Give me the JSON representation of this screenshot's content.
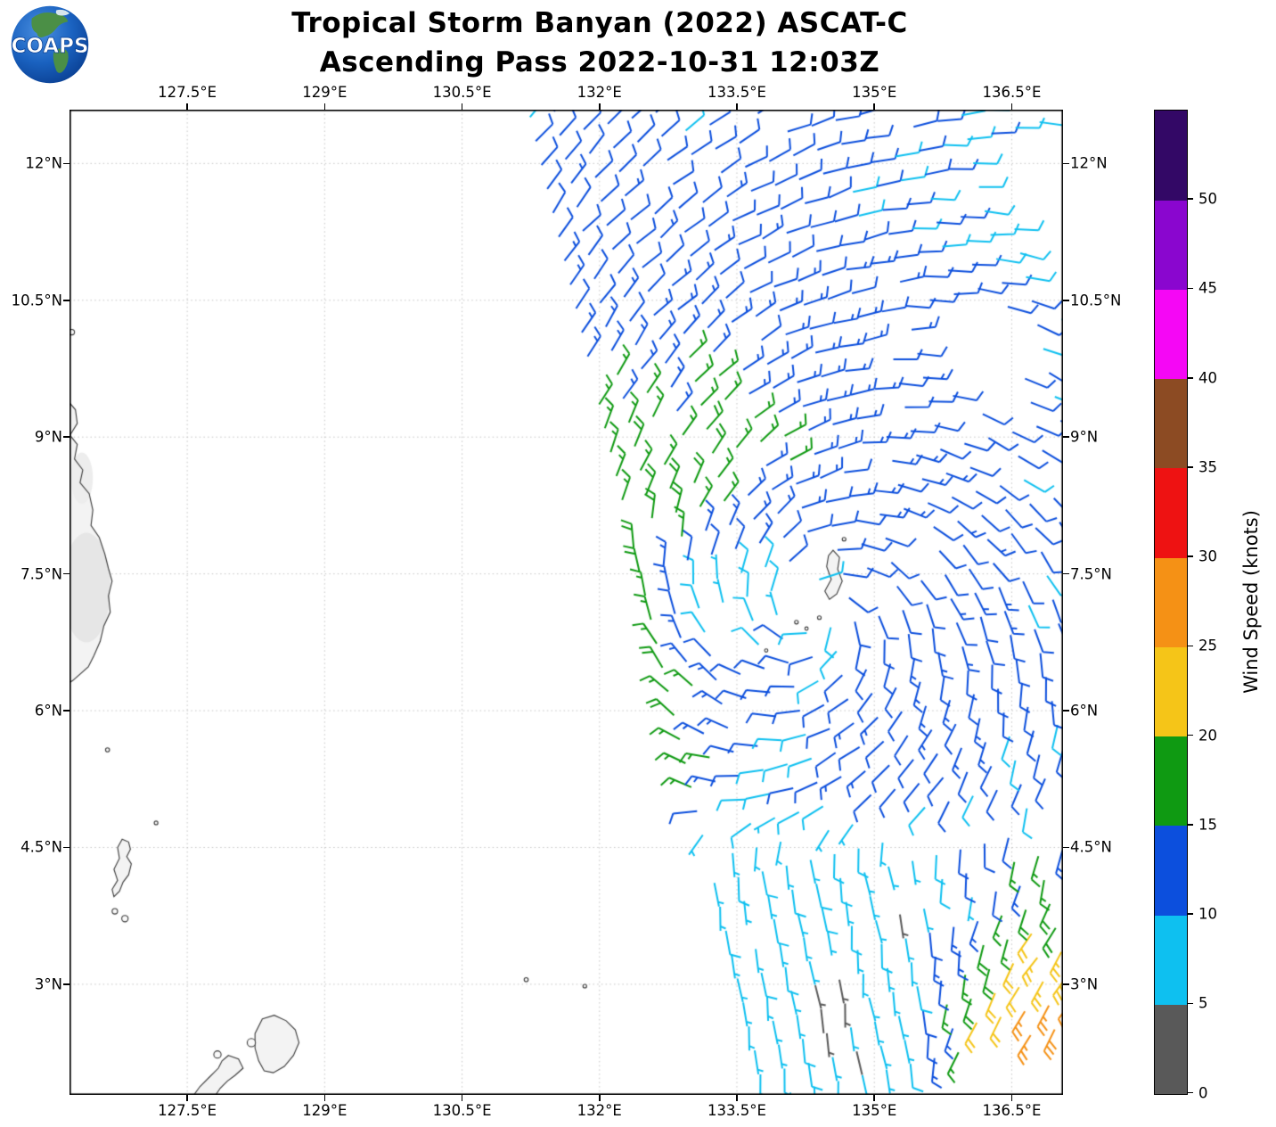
{
  "header": {
    "title_line1": "Tropical Storm Banyan (2022) ASCAT-C",
    "title_line2": "Ascending Pass 2022-10-31 12:03Z"
  },
  "logo": {
    "text": "COAPS"
  },
  "map": {
    "extent": {
      "lon_min": 126.215,
      "lon_max": 137.06,
      "lat_min": 1.787,
      "lat_max": 12.59
    },
    "x_ticks": [
      {
        "v": 127.5,
        "label": "127.5°E"
      },
      {
        "v": 129,
        "label": "129°E"
      },
      {
        "v": 130.5,
        "label": "130.5°E"
      },
      {
        "v": 132,
        "label": "132°E"
      },
      {
        "v": 133.5,
        "label": "133.5°E"
      },
      {
        "v": 135,
        "label": "135°E"
      },
      {
        "v": 136.5,
        "label": "136.5°E"
      }
    ],
    "y_ticks": [
      {
        "v": 3,
        "label": "3°N"
      },
      {
        "v": 4.5,
        "label": "4.5°N"
      },
      {
        "v": 6,
        "label": "6°N"
      },
      {
        "v": 7.5,
        "label": "7.5°N"
      },
      {
        "v": 9,
        "label": "9°N"
      },
      {
        "v": 10.5,
        "label": "10.5°N"
      },
      {
        "v": 12,
        "label": "12°N"
      }
    ],
    "grid_color": "#bfbfbf",
    "frame_color": "#000000",
    "land_fill": "#f3f3f3",
    "land_stroke": "#3a3a3a"
  },
  "colorbar": {
    "title": "Wind Speed (knots)",
    "levels": [
      0,
      5,
      10,
      15,
      20,
      25,
      30,
      35,
      40,
      45,
      50,
      55
    ],
    "colors": [
      "#595959",
      "#0ec0f0",
      "#0c4fdd",
      "#0f9a12",
      "#f5c518",
      "#f59115",
      "#ee1212",
      "#8c4b23",
      "#f507f5",
      "#8a06cf",
      "#330866"
    ],
    "tick_values": [
      0,
      5,
      10,
      15,
      20,
      25,
      30,
      35,
      40,
      45,
      50
    ]
  },
  "chart_data": {
    "type": "wind_barb_map",
    "storm": "Banyan",
    "year": "2022",
    "instrument": "ASCAT-C",
    "pass": "Ascending",
    "time": "2022-10-31 12:03Z",
    "speed_units": "knots",
    "speed_levels": [
      0,
      5,
      10,
      15,
      20,
      25,
      30,
      35,
      40,
      45,
      50,
      55
    ],
    "wind_field_model": {
      "grid_origin": [
        133.82,
        1.75
      ],
      "along_step": [
        -0.0629,
        0.2624
      ],
      "cross_step": [
        0.2624,
        0.0629
      ],
      "n_along": 47,
      "n_cross": 26,
      "vortex": {
        "center": [
          134.35,
          7.05
        ],
        "rm": 2.0,
        "smax": 14.5,
        "inner_exp": 0.25,
        "outer_exp": 0.32,
        "inflow": 0.35,
        "asym": {
          "amp_gauss": 4.5,
          "amp_base": 1.5,
          "r0": 1.9,
          "rw": 1.3,
          "theta0_deg": 180,
          "neg_scale": 0.35
        },
        "east_decay": {
          "coef": 0.55,
          "dx0": 0.8
        },
        "dips": [
          {
            "c": [
              133.15,
              7.2
            ],
            "amp": 8.5,
            "w": 0.5
          },
          {
            "c": [
              133.75,
              5.35
            ],
            "amp": 6.5,
            "w": 0.55
          }
        ],
        "eye_radius": 0.18
      },
      "south_flow": {
        "blend_lat": 4.35,
        "blend_width": 0.85,
        "base_speed": 7,
        "base_u": -1.0,
        "base_v": 8,
        "jet": {
          "lon0": 135.4,
          "lon_w": 1.2,
          "lat0": 5.0,
          "lat_w": 2.8,
          "amp": 20,
          "exp": 0.7,
          "u_turn": 6
        }
      },
      "calm_pockets": [
        [
          135.3,
          3.85,
          0.09
        ],
        [
          134.45,
          2.8,
          0.07
        ],
        [
          134.8,
          2.2,
          0.07
        ],
        [
          136.15,
          4.05,
          0.035
        ],
        [
          136.8,
          2.0,
          0.035
        ]
      ],
      "masks": {
        "gap_band": {
          "lat_min": 4.66,
          "lat_max": 4.9,
          "lon_min": 134.9
        },
        "holes": [
          {
            "c": [
              136.05,
              9.95
            ],
            "rx": 0.55,
            "ry": 0.5
          },
          {
            "c": [
              136.75,
              11.9
            ],
            "rx": 0.55,
            "ry": 0.5
          },
          {
            "c": [
              137.05,
              11.1
            ],
            "rx": 0.35,
            "ry": 0.7
          }
        ],
        "dropout": 0.06,
        "transition_band": {
          "lat_min": 4.55,
          "lat_max": 5.1,
          "dropout": 0.22
        }
      },
      "noise": {
        "speed_amp": 1.4,
        "dir_amp_deg": 8
      }
    },
    "barb_style": {
      "staff_len": 27,
      "feather_len": 12.5,
      "half_len": 6.5,
      "spacing": 6.5,
      "feather_angle_deg": -65,
      "line_width": 2
    },
    "coastlines": {
      "mindanao": [
        [
          125.9,
          9.45
        ],
        [
          126.18,
          9.42
        ],
        [
          126.28,
          9.3
        ],
        [
          126.3,
          9.15
        ],
        [
          126.22,
          9.02
        ],
        [
          126.3,
          8.92
        ],
        [
          126.27,
          8.76
        ],
        [
          126.36,
          8.64
        ],
        [
          126.33,
          8.5
        ],
        [
          126.43,
          8.38
        ],
        [
          126.47,
          8.2
        ],
        [
          126.45,
          8.03
        ],
        [
          126.54,
          7.9
        ],
        [
          126.6,
          7.72
        ],
        [
          126.64,
          7.56
        ],
        [
          126.68,
          7.42
        ],
        [
          126.64,
          7.26
        ],
        [
          126.66,
          7.08
        ],
        [
          126.59,
          6.93
        ],
        [
          126.55,
          6.76
        ],
        [
          126.48,
          6.6
        ],
        [
          126.42,
          6.48
        ],
        [
          126.33,
          6.4
        ],
        [
          126.25,
          6.33
        ],
        [
          126.16,
          6.27
        ],
        [
          125.9,
          6.2
        ]
      ],
      "talaud": [
        [
          126.79,
          4.59
        ],
        [
          126.86,
          4.56
        ],
        [
          126.88,
          4.48
        ],
        [
          126.84,
          4.4
        ],
        [
          126.89,
          4.32
        ],
        [
          126.86,
          4.2
        ],
        [
          126.8,
          4.12
        ],
        [
          126.76,
          4.02
        ],
        [
          126.7,
          3.96
        ],
        [
          126.68,
          4.04
        ],
        [
          126.74,
          4.14
        ],
        [
          126.7,
          4.26
        ],
        [
          126.76,
          4.38
        ],
        [
          126.74,
          4.5
        ]
      ],
      "morotai": [
        [
          128.32,
          2.62
        ],
        [
          128.45,
          2.66
        ],
        [
          128.58,
          2.6
        ],
        [
          128.68,
          2.5
        ],
        [
          128.72,
          2.36
        ],
        [
          128.66,
          2.22
        ],
        [
          128.56,
          2.1
        ],
        [
          128.44,
          2.03
        ],
        [
          128.34,
          2.05
        ],
        [
          128.28,
          2.16
        ],
        [
          128.24,
          2.3
        ],
        [
          128.24,
          2.46
        ]
      ],
      "halmahera_tip": [
        [
          127.95,
          2.22
        ],
        [
          128.06,
          2.18
        ],
        [
          128.11,
          2.08
        ],
        [
          128.02,
          2.0
        ],
        [
          127.94,
          1.94
        ],
        [
          127.86,
          1.86
        ],
        [
          127.8,
          1.77
        ],
        [
          127.56,
          1.77
        ],
        [
          127.64,
          1.88
        ],
        [
          127.74,
          1.98
        ],
        [
          127.84,
          2.08
        ],
        [
          127.88,
          2.16
        ]
      ],
      "palau": [
        [
          134.55,
          7.76
        ],
        [
          134.62,
          7.68
        ],
        [
          134.6,
          7.55
        ],
        [
          134.65,
          7.42
        ],
        [
          134.59,
          7.28
        ],
        [
          134.51,
          7.22
        ],
        [
          134.46,
          7.31
        ],
        [
          134.53,
          7.44
        ],
        [
          134.48,
          7.58
        ],
        [
          134.5,
          7.7
        ]
      ]
    },
    "terrain_patches": [
      {
        "c": [
          126.4,
          7.35
        ],
        "rx": 0.26,
        "ry": 0.6,
        "color": "#e6e6e6"
      },
      {
        "c": [
          126.35,
          8.55
        ],
        "rx": 0.12,
        "ry": 0.28,
        "color": "#ededed"
      }
    ],
    "island_dots": [
      [
        126.24,
        10.15,
        0.03
      ],
      [
        126.63,
        5.57,
        0.022
      ],
      [
        127.16,
        4.77,
        0.02
      ],
      [
        126.71,
        3.8,
        0.03
      ],
      [
        126.82,
        3.72,
        0.035
      ],
      [
        131.2,
        3.05,
        0.022
      ],
      [
        131.84,
        2.98,
        0.02
      ],
      [
        127.83,
        2.23,
        0.04
      ],
      [
        128.2,
        2.36,
        0.045
      ],
      [
        134.67,
        7.88,
        0.02
      ],
      [
        134.4,
        7.02,
        0.02
      ],
      [
        134.15,
        6.97,
        0.02
      ],
      [
        134.26,
        6.9,
        0.018
      ],
      [
        133.82,
        6.66,
        0.018
      ]
    ]
  }
}
